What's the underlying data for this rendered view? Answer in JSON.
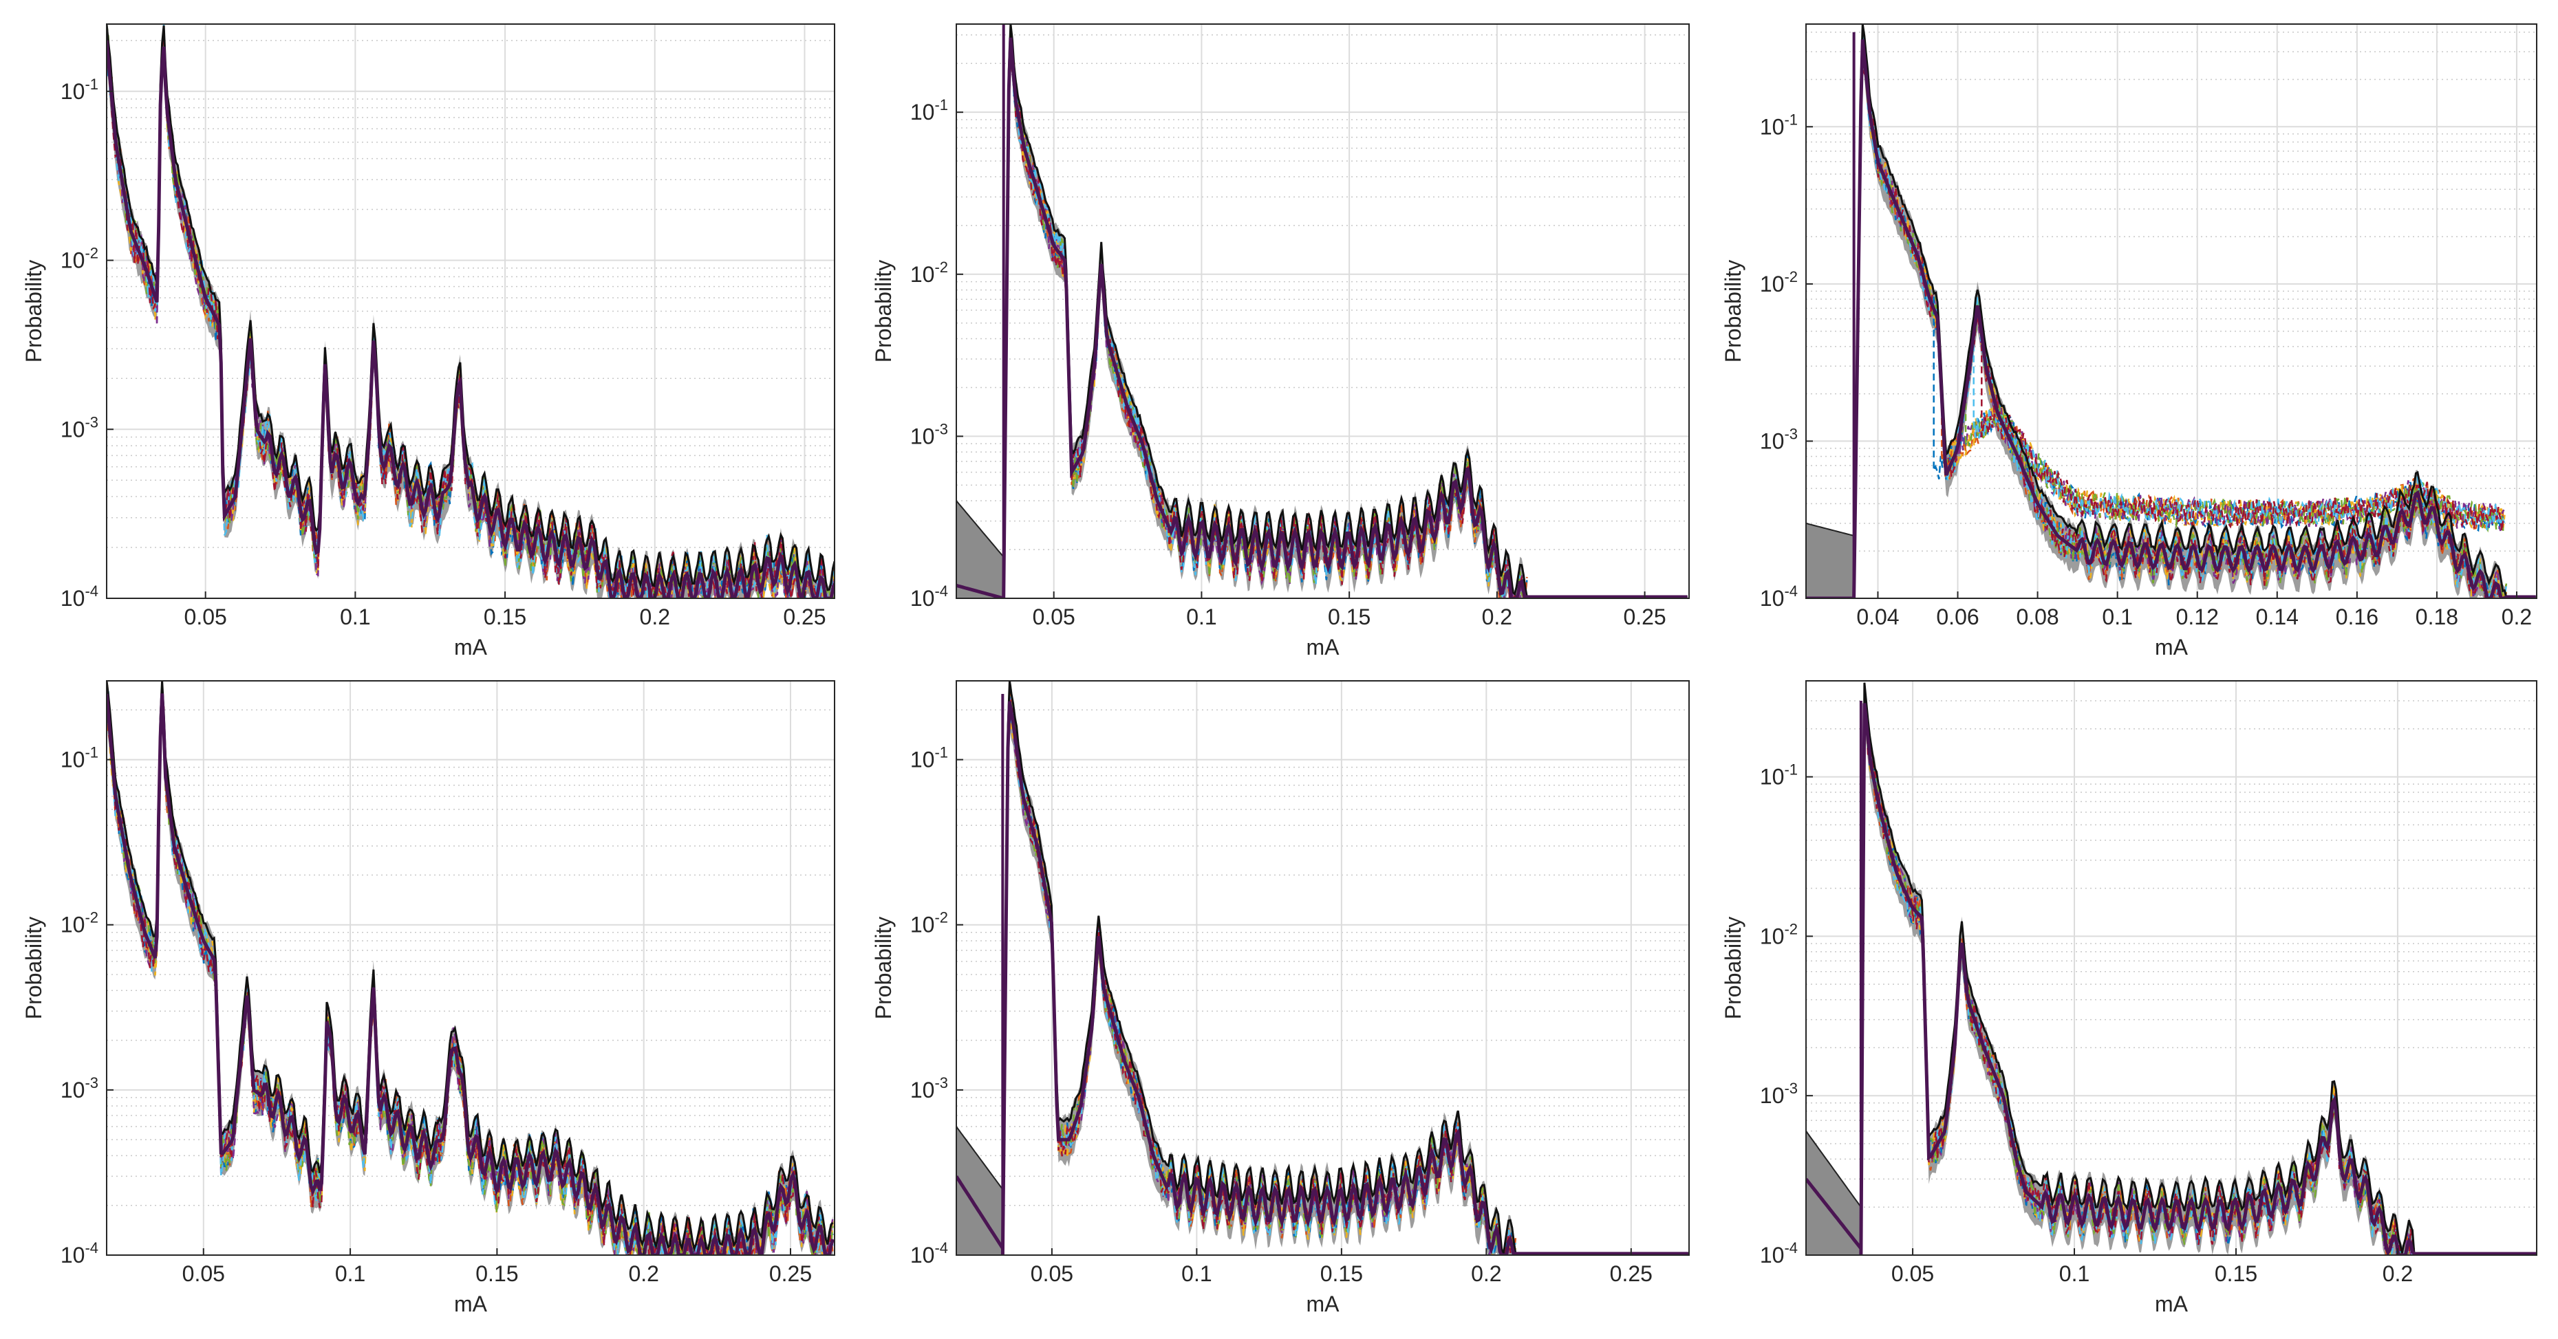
{
  "colors": {
    "axes": "#262626",
    "grid_major": "#dcdcdc",
    "grid_minor": "#c8c8c8",
    "band_fill": "#8c8c8c",
    "mean_line": "#4b1553",
    "upper_line": "#111111",
    "series_palette": [
      "#0072BD",
      "#D95319",
      "#EDB120",
      "#7E2F8E",
      "#77AC30",
      "#4DBEEE",
      "#A2142F"
    ]
  },
  "chart_data": [
    {
      "panel": "top-left",
      "type": "line",
      "yscale": "log",
      "xlabel": "mA",
      "ylabel": "Probability",
      "xlim": [
        0.017,
        0.26
      ],
      "ylim": [
        0.0001,
        0.25
      ],
      "xticks": [
        0.05,
        0.1,
        0.15,
        0.2,
        0.25
      ],
      "xtick_labels": [
        "0.05",
        "0.1",
        "0.15",
        "0.2",
        "0.25"
      ],
      "yticks": [
        0.0001,
        0.001,
        0.01,
        0.1
      ],
      "ytick_labels": [
        "10^-4",
        "10^-3",
        "10^-2",
        "10^-1"
      ],
      "start_value": 0.2,
      "curve": [
        [
          0.02,
          0.05
        ],
        [
          0.025,
          0.015
        ],
        [
          0.03,
          0.009
        ],
        [
          0.034,
          0.0055
        ],
        [
          0.035,
          0.1
        ],
        [
          0.036,
          0.2
        ],
        [
          0.037,
          0.08
        ],
        [
          0.04,
          0.03
        ],
        [
          0.045,
          0.013
        ],
        [
          0.05,
          0.006
        ],
        [
          0.055,
          0.004
        ],
        [
          0.056,
          0.0003
        ],
        [
          0.06,
          0.0004
        ],
        [
          0.065,
          0.0035
        ],
        [
          0.067,
          0.001
        ],
        [
          0.075,
          0.0006
        ],
        [
          0.085,
          0.0003
        ],
        [
          0.088,
          0.0002
        ],
        [
          0.09,
          0.0025
        ],
        [
          0.092,
          0.0006
        ],
        [
          0.1,
          0.0005
        ],
        [
          0.103,
          0.0003
        ],
        [
          0.106,
          0.0035
        ],
        [
          0.108,
          0.0008
        ],
        [
          0.12,
          0.0004
        ],
        [
          0.13,
          0.00035
        ],
        [
          0.135,
          0.0018
        ],
        [
          0.138,
          0.0004
        ],
        [
          0.15,
          0.00025
        ],
        [
          0.165,
          0.0002
        ],
        [
          0.18,
          0.00018
        ],
        [
          0.185,
          0.00012
        ],
        [
          0.2,
          0.00011
        ],
        [
          0.23,
          0.00012
        ],
        [
          0.24,
          0.00015
        ],
        [
          0.25,
          0.00012
        ],
        [
          0.26,
          0.0001
        ]
      ],
      "noise_amp": 0.28,
      "ripple_start": 0.07,
      "ripple_period": 0.0045,
      "ripple_amp": 0.18
    },
    {
      "panel": "top-middle",
      "type": "line",
      "yscale": "log",
      "xlabel": "mA",
      "ylabel": "Probability",
      "xlim": [
        0.017,
        0.265
      ],
      "ylim": [
        0.0001,
        0.35
      ],
      "xticks": [
        0.05,
        0.1,
        0.15,
        0.2,
        0.25
      ],
      "xtick_labels": [
        "0.05",
        "0.1",
        "0.15",
        "0.2",
        "0.25"
      ],
      "yticks": [
        0.0001,
        0.001,
        0.01,
        0.1
      ],
      "ytick_labels": [
        "10^-4",
        "10^-3",
        "10^-2",
        "10^-1"
      ],
      "low_region": {
        "start": 0.017,
        "end": 0.033,
        "mean_from": 0.00012,
        "mean_to": 0.0001,
        "band_from": 0.0004,
        "band_to": 0.00018
      },
      "curve": [
        [
          0.033,
          0.0001
        ],
        [
          0.035,
          0.35
        ],
        [
          0.037,
          0.12
        ],
        [
          0.04,
          0.06
        ],
        [
          0.045,
          0.03
        ],
        [
          0.05,
          0.015
        ],
        [
          0.054,
          0.012
        ],
        [
          0.056,
          0.0006
        ],
        [
          0.06,
          0.0008
        ],
        [
          0.064,
          0.003
        ],
        [
          0.066,
          0.012
        ],
        [
          0.068,
          0.004
        ],
        [
          0.075,
          0.0015
        ],
        [
          0.08,
          0.0009
        ],
        [
          0.085,
          0.0004
        ],
        [
          0.09,
          0.00025
        ],
        [
          0.12,
          0.0002
        ],
        [
          0.15,
          0.0002
        ],
        [
          0.175,
          0.00025
        ],
        [
          0.185,
          0.0004
        ],
        [
          0.19,
          0.0005
        ],
        [
          0.197,
          0.0002
        ],
        [
          0.205,
          0.0001
        ],
        [
          0.21,
          0.0001
        ]
      ],
      "noise_amp": 0.25,
      "ripple_start": 0.09,
      "ripple_period": 0.0045,
      "ripple_amp": 0.22,
      "cutoff": 0.21
    },
    {
      "panel": "top-right",
      "type": "line",
      "yscale": "log",
      "xlabel": "mA",
      "ylabel": "Probability",
      "xlim": [
        0.022,
        0.205
      ],
      "ylim": [
        0.0001,
        0.45
      ],
      "xticks": [
        0.04,
        0.06,
        0.08,
        0.1,
        0.12,
        0.14,
        0.16,
        0.18,
        0.2
      ],
      "xtick_labels": [
        "0.04",
        "0.06",
        "0.08",
        "0.1",
        "0.12",
        "0.14",
        "0.16",
        "0.18",
        "0.2"
      ],
      "yticks": [
        0.0001,
        0.001,
        0.01,
        0.1
      ],
      "ytick_labels": [
        "10^-4",
        "10^-3",
        "10^-2",
        "10^-1"
      ],
      "low_region": {
        "start": 0.022,
        "end": 0.034,
        "mean_from": 0.0001,
        "mean_to": 0.0001,
        "band_from": 0.0003,
        "band_to": 0.00025
      },
      "curve": [
        [
          0.034,
          0.0001
        ],
        [
          0.036,
          0.4
        ],
        [
          0.038,
          0.12
        ],
        [
          0.04,
          0.06
        ],
        [
          0.045,
          0.03
        ],
        [
          0.05,
          0.015
        ],
        [
          0.053,
          0.008
        ],
        [
          0.055,
          0.006
        ],
        [
          0.057,
          0.0006
        ],
        [
          0.06,
          0.0009
        ],
        [
          0.063,
          0.003
        ],
        [
          0.065,
          0.0075
        ],
        [
          0.067,
          0.003
        ],
        [
          0.07,
          0.0015
        ],
        [
          0.075,
          0.0008
        ],
        [
          0.08,
          0.0004
        ],
        [
          0.085,
          0.00025
        ],
        [
          0.09,
          0.0002
        ],
        [
          0.12,
          0.00018
        ],
        [
          0.15,
          0.00018
        ],
        [
          0.165,
          0.00022
        ],
        [
          0.17,
          0.00028
        ],
        [
          0.175,
          0.0004
        ],
        [
          0.18,
          0.0003
        ],
        [
          0.185,
          0.00018
        ],
        [
          0.19,
          0.00013
        ],
        [
          0.196,
          0.0001
        ]
      ],
      "noise_amp": 0.22,
      "ripple_start": 0.09,
      "ripple_period": 0.004,
      "ripple_amp": 0.15,
      "cutoff": 0.197,
      "outlier_curve": [
        [
          0.054,
          0.0006
        ],
        [
          0.06,
          0.0009
        ],
        [
          0.07,
          0.0015
        ],
        [
          0.08,
          0.0007
        ],
        [
          0.09,
          0.0004
        ],
        [
          0.12,
          0.00035
        ],
        [
          0.15,
          0.00035
        ],
        [
          0.165,
          0.00038
        ],
        [
          0.175,
          0.0005
        ],
        [
          0.185,
          0.00034
        ],
        [
          0.197,
          0.00032
        ]
      ]
    },
    {
      "panel": "bottom-left",
      "type": "line",
      "yscale": "log",
      "xlabel": "mA",
      "ylabel": "Probability",
      "xlim": [
        0.017,
        0.265
      ],
      "ylim": [
        0.0001,
        0.3
      ],
      "xticks": [
        0.05,
        0.1,
        0.15,
        0.2,
        0.25
      ],
      "xtick_labels": [
        "0.05",
        "0.1",
        "0.15",
        "0.2",
        "0.25"
      ],
      "yticks": [
        0.0001,
        0.001,
        0.01,
        0.1
      ],
      "ytick_labels": [
        "10^-4",
        "10^-3",
        "10^-2",
        "10^-1"
      ],
      "start_value": 0.25,
      "curve": [
        [
          0.02,
          0.06
        ],
        [
          0.025,
          0.02
        ],
        [
          0.03,
          0.009
        ],
        [
          0.034,
          0.006
        ],
        [
          0.035,
          0.1
        ],
        [
          0.036,
          0.28
        ],
        [
          0.037,
          0.08
        ],
        [
          0.04,
          0.03
        ],
        [
          0.045,
          0.015
        ],
        [
          0.05,
          0.008
        ],
        [
          0.054,
          0.006
        ],
        [
          0.056,
          0.0004
        ],
        [
          0.06,
          0.0005
        ],
        [
          0.065,
          0.004
        ],
        [
          0.067,
          0.001
        ],
        [
          0.075,
          0.0008
        ],
        [
          0.085,
          0.0004
        ],
        [
          0.09,
          0.0002
        ],
        [
          0.092,
          0.003
        ],
        [
          0.095,
          0.0008
        ],
        [
          0.1,
          0.0007
        ],
        [
          0.105,
          0.0005
        ],
        [
          0.108,
          0.004
        ],
        [
          0.11,
          0.0008
        ],
        [
          0.12,
          0.0005
        ],
        [
          0.13,
          0.0004
        ],
        [
          0.136,
          0.0022
        ],
        [
          0.14,
          0.0005
        ],
        [
          0.15,
          0.0003
        ],
        [
          0.17,
          0.00035
        ],
        [
          0.18,
          0.00025
        ],
        [
          0.19,
          0.00015
        ],
        [
          0.2,
          0.00011
        ],
        [
          0.22,
          0.0001
        ],
        [
          0.24,
          0.00012
        ],
        [
          0.25,
          0.00028
        ],
        [
          0.255,
          0.00015
        ],
        [
          0.265,
          0.0001
        ]
      ],
      "noise_amp": 0.28,
      "ripple_start": 0.07,
      "ripple_period": 0.0045,
      "ripple_amp": 0.18
    },
    {
      "panel": "bottom-middle",
      "type": "line",
      "yscale": "log",
      "xlabel": "mA",
      "ylabel": "Probability",
      "xlim": [
        0.017,
        0.27
      ],
      "ylim": [
        0.0001,
        0.3
      ],
      "xticks": [
        0.05,
        0.1,
        0.15,
        0.2,
        0.25
      ],
      "xtick_labels": [
        "0.05",
        "0.1",
        "0.15",
        "0.2",
        "0.25"
      ],
      "yticks": [
        0.0001,
        0.001,
        0.01,
        0.1
      ],
      "ytick_labels": [
        "10^-4",
        "10^-3",
        "10^-2",
        "10^-1"
      ],
      "low_region": {
        "start": 0.017,
        "end": 0.033,
        "mean_from": 0.0003,
        "mean_to": 0.00011,
        "band_from": 0.0006,
        "band_to": 0.00025
      },
      "curve": [
        [
          0.033,
          0.0001
        ],
        [
          0.035,
          0.25
        ],
        [
          0.037,
          0.15
        ],
        [
          0.04,
          0.06
        ],
        [
          0.045,
          0.03
        ],
        [
          0.05,
          0.01
        ],
        [
          0.052,
          0.0005
        ],
        [
          0.056,
          0.0005
        ],
        [
          0.06,
          0.0008
        ],
        [
          0.064,
          0.0025
        ],
        [
          0.066,
          0.009
        ],
        [
          0.068,
          0.004
        ],
        [
          0.075,
          0.0015
        ],
        [
          0.08,
          0.0009
        ],
        [
          0.085,
          0.0004
        ],
        [
          0.09,
          0.00025
        ],
        [
          0.12,
          0.0002
        ],
        [
          0.15,
          0.0002
        ],
        [
          0.175,
          0.00025
        ],
        [
          0.185,
          0.0004
        ],
        [
          0.19,
          0.00045
        ],
        [
          0.197,
          0.0002
        ],
        [
          0.205,
          0.0001
        ],
        [
          0.21,
          0.0001
        ]
      ],
      "noise_amp": 0.22,
      "ripple_start": 0.09,
      "ripple_period": 0.0045,
      "ripple_amp": 0.2,
      "cutoff": 0.21
    },
    {
      "panel": "bottom-right",
      "type": "line",
      "yscale": "log",
      "xlabel": "mA",
      "ylabel": "Probability",
      "xlim": [
        0.017,
        0.243
      ],
      "ylim": [
        0.0001,
        0.4
      ],
      "xticks": [
        0.05,
        0.1,
        0.15,
        0.2
      ],
      "xtick_labels": [
        "0.05",
        "0.1",
        "0.15",
        "0.2"
      ],
      "yticks": [
        0.0001,
        0.001,
        0.01,
        0.1
      ],
      "ytick_labels": [
        "10^-4",
        "10^-3",
        "10^-2",
        "10^-1"
      ],
      "low_region": {
        "start": 0.017,
        "end": 0.034,
        "mean_from": 0.0003,
        "mean_to": 0.00011,
        "band_from": 0.0006,
        "band_to": 0.0002
      },
      "curve": [
        [
          0.034,
          0.0001
        ],
        [
          0.035,
          0.3
        ],
        [
          0.037,
          0.12
        ],
        [
          0.04,
          0.06
        ],
        [
          0.045,
          0.025
        ],
        [
          0.05,
          0.015
        ],
        [
          0.053,
          0.013
        ],
        [
          0.055,
          0.0004
        ],
        [
          0.06,
          0.0006
        ],
        [
          0.063,
          0.002
        ],
        [
          0.065,
          0.01
        ],
        [
          0.067,
          0.004
        ],
        [
          0.072,
          0.002
        ],
        [
          0.078,
          0.001
        ],
        [
          0.082,
          0.0004
        ],
        [
          0.085,
          0.00025
        ],
        [
          0.09,
          0.0002
        ],
        [
          0.12,
          0.00018
        ],
        [
          0.15,
          0.00018
        ],
        [
          0.17,
          0.00025
        ],
        [
          0.178,
          0.0005
        ],
        [
          0.18,
          0.001
        ],
        [
          0.182,
          0.0004
        ],
        [
          0.19,
          0.00025
        ],
        [
          0.195,
          0.00015
        ],
        [
          0.2,
          0.0001
        ],
        [
          0.205,
          0.0001
        ]
      ],
      "noise_amp": 0.22,
      "ripple_start": 0.09,
      "ripple_period": 0.0045,
      "ripple_amp": 0.18,
      "cutoff": 0.205
    }
  ]
}
